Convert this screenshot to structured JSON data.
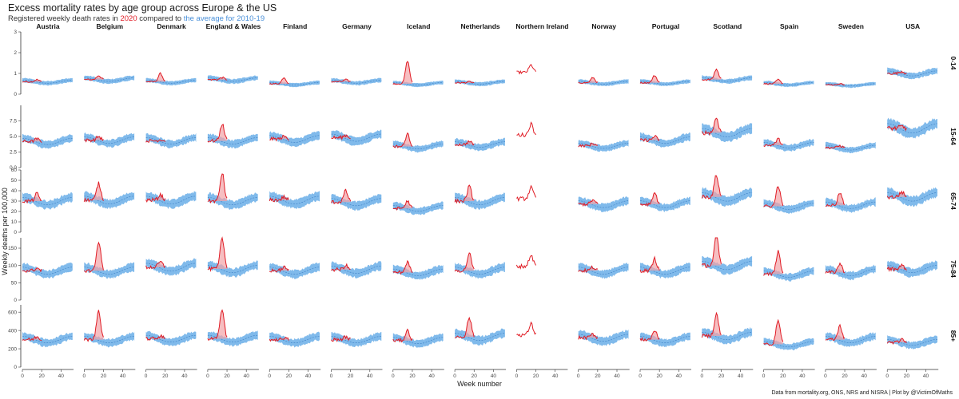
{
  "header": {
    "title": "Excess mortality rates by age group across Europe & the US",
    "subtitle_prefix": "Registered weekly death rates in ",
    "subtitle_year": "2020",
    "subtitle_mid": " compared to ",
    "subtitle_avg": "the average for 2010-19",
    "caption": "Data from mortality.org, ONS, NRS and NISRA | Plot by @VictimOfMaths"
  },
  "colors": {
    "current": "#e01b24",
    "avg_band": "#6aaee8",
    "avg_line": "#3b7fc4",
    "axis": "#333333",
    "excess_fill": "#f2a3a6"
  },
  "chart_data": {
    "type": "line",
    "title": "Excess mortality rates by age group across Europe & the US",
    "xlabel": "Week number",
    "ylabel": "Weekly deaths per 100,000",
    "x_ticks": [
      0,
      20,
      40
    ],
    "x_range": [
      0,
      53
    ],
    "grid": false,
    "columns": [
      "Austria",
      "Belgium",
      "Denmark",
      "England & Wales",
      "Finland",
      "Germany",
      "Iceland",
      "Netherlands",
      "Northern Ireland",
      "Norway",
      "Portugal",
      "Scotland",
      "Spain",
      "Sweden",
      "USA"
    ],
    "rows": [
      {
        "label": "0-14",
        "ylim": [
          0,
          3
        ],
        "y_ticks": [
          0,
          1,
          2,
          3
        ],
        "y_tick_labels": [
          "0",
          "1",
          "2",
          "3"
        ],
        "series_2010_19_mean": [
          0.6,
          0.7,
          0.6,
          0.7,
          0.5,
          0.6,
          0.5,
          0.55,
          null,
          0.55,
          0.55,
          0.7,
          0.5,
          0.45,
          1.0
        ],
        "series_2020_peak": [
          0.7,
          0.9,
          1.0,
          0.8,
          0.8,
          0.7,
          1.6,
          0.6,
          1.4,
          0.8,
          0.9,
          1.2,
          0.7,
          0.5,
          1.1
        ]
      },
      {
        "label": "15-64",
        "ylim": [
          0,
          10
        ],
        "y_ticks": [
          0,
          2.5,
          5,
          7.5
        ],
        "y_tick_labels": [
          "0.0",
          "2.5",
          "5.0",
          "7.5"
        ],
        "series_2010_19_mean": [
          4.2,
          4.4,
          4.3,
          4.3,
          4.6,
          4.8,
          3.4,
          3.7,
          null,
          3.5,
          4.4,
          5.6,
          3.6,
          3.2,
          6.3
        ],
        "series_2020_peak": [
          4.6,
          5.0,
          4.5,
          7.0,
          5.0,
          5.2,
          5.4,
          4.2,
          7.0,
          3.9,
          5.0,
          8.0,
          4.6,
          3.5,
          6.6
        ]
      },
      {
        "label": "65-74",
        "ylim": [
          0,
          60
        ],
        "y_ticks": [
          0,
          10,
          20,
          30,
          40,
          50,
          60
        ],
        "y_tick_labels": [
          "0",
          "10",
          "20",
          "30",
          "40",
          "50",
          "60"
        ],
        "series_2010_19_mean": [
          30,
          31,
          31,
          30,
          31,
          29,
          23,
          30,
          null,
          27,
          27,
          34,
          25,
          26,
          34
        ],
        "series_2020_peak": [
          37,
          47,
          36,
          57,
          34,
          40,
          30,
          44,
          43,
          31,
          38,
          55,
          45,
          38,
          39
        ]
      },
      {
        "label": "75-84",
        "ylim": [
          0,
          180
        ],
        "y_ticks": [
          0,
          50,
          100,
          150
        ],
        "y_tick_labels": [
          "0",
          "50",
          "100",
          "150"
        ],
        "series_2010_19_mean": [
          85,
          85,
          95,
          90,
          85,
          88,
          80,
          85,
          null,
          85,
          85,
          100,
          75,
          80,
          90
        ],
        "series_2020_peak": [
          92,
          170,
          110,
          178,
          95,
          100,
          110,
          135,
          130,
          95,
          120,
          185,
          140,
          105,
          100
        ]
      },
      {
        "label": "85+",
        "ylim": [
          0,
          680
        ],
        "y_ticks": [
          0,
          200,
          400,
          600
        ],
        "y_tick_labels": [
          "0",
          "200",
          "400",
          "600"
        ],
        "series_2010_19_mean": [
          300,
          300,
          310,
          310,
          300,
          300,
          290,
          330,
          null,
          320,
          300,
          340,
          250,
          300,
          270
        ],
        "series_2020_peak": [
          330,
          620,
          340,
          640,
          320,
          330,
          400,
          540,
          470,
          360,
          400,
          580,
          520,
          450,
          300
        ]
      }
    ]
  }
}
